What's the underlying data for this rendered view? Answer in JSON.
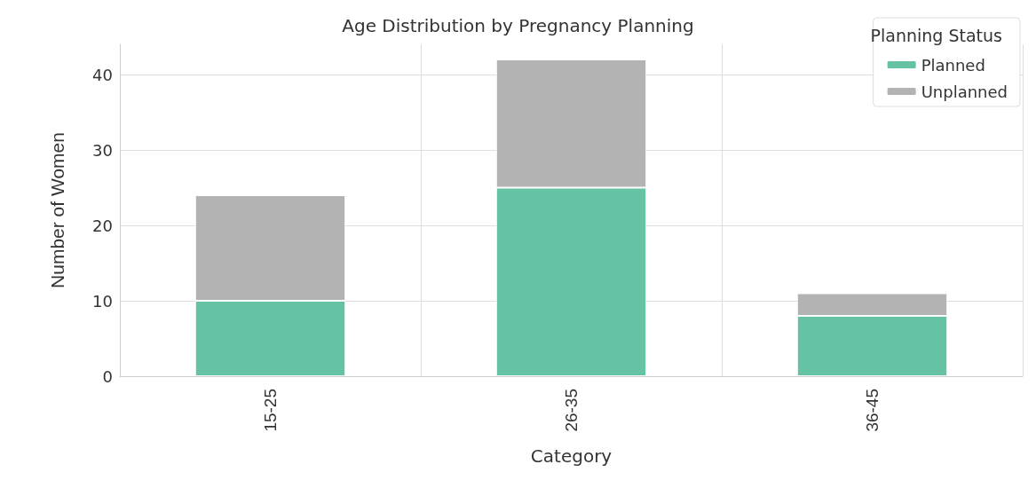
{
  "chart_data": {
    "type": "bar",
    "title": "Age Distribution by Pregnancy Planning",
    "xlabel": "Category",
    "ylabel": "Number of Women",
    "legend_title": "Planning Status",
    "categories": [
      "15-25",
      "26-35",
      "36-45"
    ],
    "series": [
      {
        "name": "Planned",
        "color": "#66c2a5",
        "values": [
          10,
          25,
          8
        ]
      },
      {
        "name": "Unplanned",
        "color": "#b3b3b3",
        "values": [
          14,
          17,
          3
        ]
      }
    ],
    "stacked": true,
    "ylim": [
      0,
      44
    ],
    "yticks": [
      0,
      10,
      20,
      30,
      40
    ],
    "grid": true,
    "legend": "top right"
  }
}
